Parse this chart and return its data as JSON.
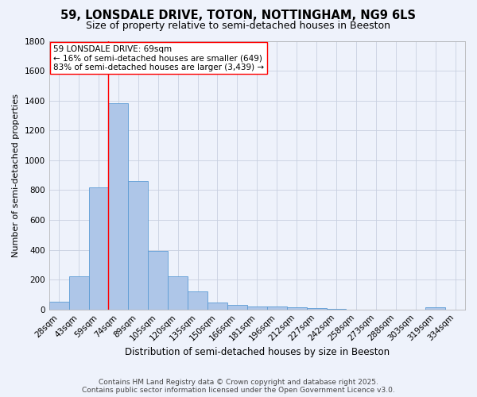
{
  "title": "59, LONSDALE DRIVE, TOTON, NOTTINGHAM, NG9 6LS",
  "subtitle": "Size of property relative to semi-detached houses in Beeston",
  "xlabel": "Distribution of semi-detached houses by size in Beeston",
  "ylabel": "Number of semi-detached properties",
  "categories": [
    "28sqm",
    "43sqm",
    "59sqm",
    "74sqm",
    "89sqm",
    "105sqm",
    "120sqm",
    "135sqm",
    "150sqm",
    "166sqm",
    "181sqm",
    "196sqm",
    "212sqm",
    "227sqm",
    "242sqm",
    "258sqm",
    "273sqm",
    "288sqm",
    "303sqm",
    "319sqm",
    "334sqm"
  ],
  "values": [
    50,
    220,
    820,
    1380,
    860,
    395,
    220,
    120,
    48,
    32,
    22,
    18,
    12,
    7,
    4,
    0,
    0,
    0,
    0,
    12,
    0
  ],
  "bar_color": "#aec6e8",
  "bar_edge_color": "#5b9bd5",
  "vline_x": 2.5,
  "vline_color": "red",
  "annotation_text": "59 LONSDALE DRIVE: 69sqm\n← 16% of semi-detached houses are smaller (649)\n83% of semi-detached houses are larger (3,439) →",
  "background_color": "#eef2fb",
  "grid_color": "#c8d0e0",
  "ylim": [
    0,
    1800
  ],
  "yticks": [
    0,
    200,
    400,
    600,
    800,
    1000,
    1200,
    1400,
    1600,
    1800
  ],
  "title_fontsize": 10.5,
  "subtitle_fontsize": 9,
  "xlabel_fontsize": 8.5,
  "ylabel_fontsize": 8,
  "tick_fontsize": 7.5,
  "annotation_fontsize": 7.5,
  "footer_fontsize": 6.5,
  "footer": "Contains HM Land Registry data © Crown copyright and database right 2025.\nContains public sector information licensed under the Open Government Licence v3.0."
}
